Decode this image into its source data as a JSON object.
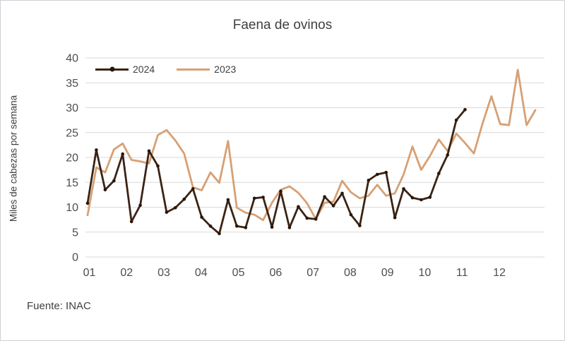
{
  "title": "Faena de ovinos",
  "y_axis_title": "Miles de cabezas por semana",
  "source": "Fuente: INAC",
  "legend": {
    "items": [
      {
        "label": "2024",
        "color": "#3B2315",
        "marker": true
      },
      {
        "label": "2023",
        "color": "#D7A074",
        "marker": false
      }
    ]
  },
  "colors": {
    "series_2024": "#3B2315",
    "series_2024_marker": "#2A1608",
    "series_2023": "#D7A074",
    "gridline": "#D9D9D9",
    "text": "#404040",
    "tick_text": "#4D4D4D"
  },
  "chart_data": {
    "type": "line",
    "title": "Faena de ovinos",
    "xlabel": "",
    "ylabel": "Miles de cabezas por semana",
    "ylim": [
      0,
      40
    ],
    "yticks": [
      0,
      5,
      10,
      15,
      20,
      25,
      30,
      35,
      40
    ],
    "x_unit": "week",
    "weeks_per_year": 52,
    "month_tick_labels": [
      "01",
      "02",
      "03",
      "04",
      "05",
      "06",
      "07",
      "08",
      "09",
      "10",
      "11",
      "12"
    ],
    "grid": true,
    "legend_position": "top-left",
    "series": [
      {
        "name": "2023",
        "color": "#D7A074",
        "marker": false,
        "values": [
          8.4,
          18.0,
          17.0,
          21.6,
          22.8,
          19.5,
          19.2,
          18.8,
          24.5,
          25.5,
          23.4,
          20.8,
          14.0,
          13.4,
          17.0,
          14.9,
          23.3,
          9.9,
          8.9,
          8.5,
          7.4,
          10.9,
          13.5,
          14.2,
          12.9,
          10.8,
          7.6,
          10.9,
          11.1,
          15.3,
          13.0,
          11.8,
          12.3,
          14.5,
          12.3,
          12.8,
          16.6,
          22.2,
          17.5,
          20.3,
          23.6,
          21.3,
          24.8,
          22.9,
          20.8,
          26.9,
          32.3,
          26.7,
          26.5,
          37.6,
          26.5,
          29.5
        ]
      },
      {
        "name": "2024",
        "color": "#3B2315",
        "marker": true,
        "values": [
          10.8,
          21.5,
          13.5,
          15.3,
          20.7,
          7.1,
          10.4,
          21.3,
          18.3,
          9.0,
          9.9,
          11.6,
          13.7,
          8.0,
          6.2,
          4.7,
          11.5,
          6.2,
          5.9,
          11.8,
          12.0,
          6.0,
          13.2,
          5.9,
          10.1,
          7.8,
          7.6,
          12.1,
          10.3,
          12.8,
          8.5,
          6.3,
          15.4,
          16.6,
          17.0,
          7.9,
          13.7,
          11.9,
          11.5,
          12.0,
          16.8,
          20.5,
          27.5,
          29.6
        ]
      }
    ]
  }
}
